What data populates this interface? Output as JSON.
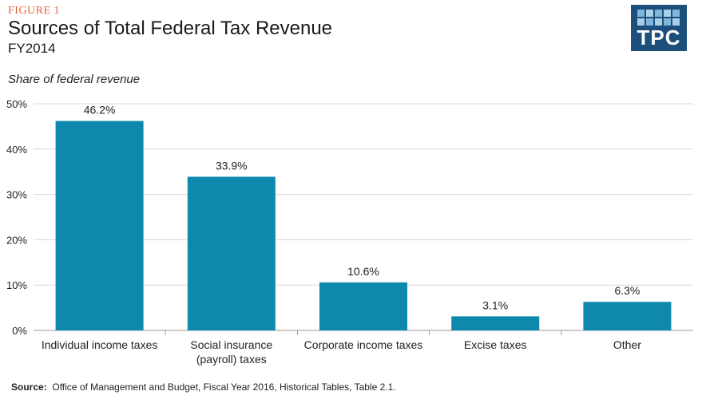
{
  "figure_label": "FIGURE 1",
  "logo_text": "TPC",
  "source": {
    "label": "Source:",
    "text": "Office of Management and Budget, Fiscal Year 2016, Historical Tables, Table 2.1."
  },
  "colors": {
    "bar": "#0e89ad",
    "accent": "#e0663a",
    "logo_bg": "#1d4f7c"
  },
  "chart_data": {
    "type": "bar",
    "title": "Sources of Total Federal Tax Revenue",
    "subtitle": "FY2014",
    "ylabel": "Share of federal revenue",
    "xlabel": "",
    "ylim": [
      0,
      50
    ],
    "yticks": [
      "0%",
      "10%",
      "20%",
      "30%",
      "40%",
      "50%"
    ],
    "ytick_values": [
      0,
      10,
      20,
      30,
      40,
      50
    ],
    "categories": [
      [
        "Individual income taxes"
      ],
      [
        "Social insurance",
        "(payroll) taxes"
      ],
      [
        "Corporate income taxes"
      ],
      [
        "Excise taxes"
      ],
      [
        "Other"
      ]
    ],
    "values": [
      46.2,
      33.9,
      10.6,
      3.1,
      6.3
    ],
    "data_labels": [
      "46.2%",
      "33.9%",
      "10.6%",
      "3.1%",
      "6.3%"
    ],
    "grid": true
  }
}
